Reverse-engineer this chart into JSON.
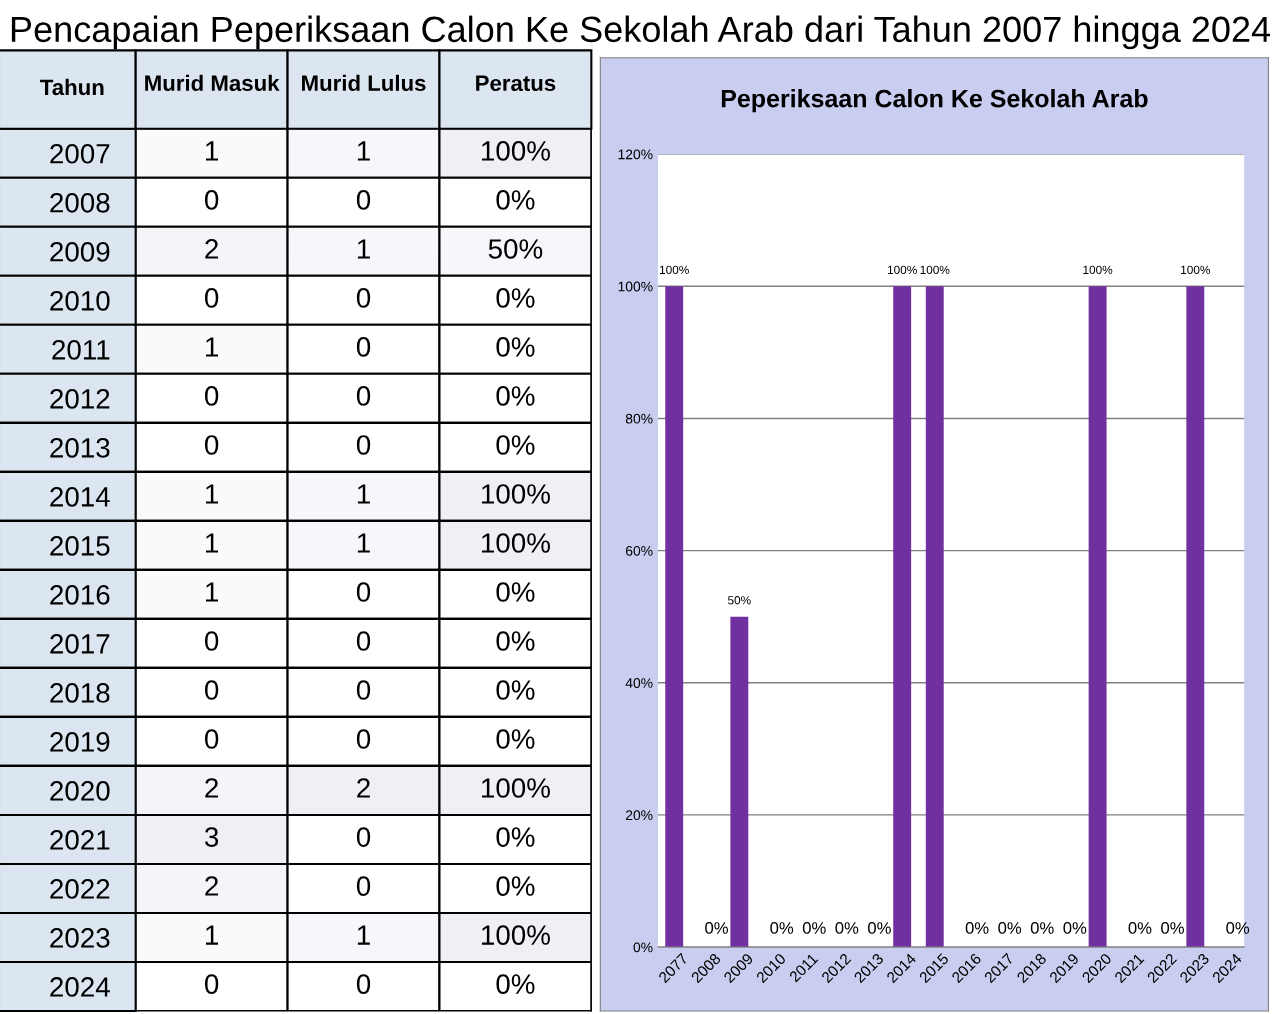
{
  "chart_data": [
    {
      "type": "heatmap",
      "title": "Pencapaian Peperiksaan Calon Ke Sekolah Arab dari Tahun 2007 hingga 2024",
      "ylabel": "Tahun",
      "categories": [
        "Murid Masuk",
        "Murid Lulus",
        "Peratus"
      ],
      "y_categories": [
        "2007",
        "2008",
        "2009",
        "2010",
        "2011",
        "2012",
        "2013",
        "2014",
        "2015",
        "2016",
        "2017",
        "2018",
        "2019",
        "2020",
        "2021",
        "2022",
        "2023",
        "2024"
      ],
      "cells": [
        [
          1,
          1,
          100
        ],
        [
          0,
          0,
          0
        ],
        [
          2,
          1,
          50
        ],
        [
          0,
          0,
          0
        ],
        [
          1,
          0,
          0
        ],
        [
          0,
          0,
          0
        ],
        [
          0,
          0,
          0
        ],
        [
          1,
          1,
          100
        ],
        [
          1,
          1,
          100
        ],
        [
          1,
          0,
          0
        ],
        [
          0,
          0,
          0
        ],
        [
          0,
          0,
          0
        ],
        [
          0,
          0,
          0
        ],
        [
          2,
          2,
          100
        ],
        [
          3,
          0,
          0
        ],
        [
          2,
          0,
          0
        ],
        [
          1,
          1,
          100
        ],
        [
          0,
          0,
          0
        ]
      ],
      "cell_labels": [
        [
          "1",
          "1",
          "100%"
        ],
        [
          "0",
          "0",
          "0%"
        ],
        [
          "2",
          "1",
          "50%"
        ],
        [
          "0",
          "0",
          "0%"
        ],
        [
          "1",
          "0",
          "0%"
        ],
        [
          "0",
          "0",
          "0%"
        ],
        [
          "0",
          "0",
          "0%"
        ],
        [
          "1",
          "1",
          "100%"
        ],
        [
          "1",
          "1",
          "100%"
        ],
        [
          "1",
          "0",
          "0%"
        ],
        [
          "0",
          "0",
          "0%"
        ],
        [
          "0",
          "0",
          "0%"
        ],
        [
          "0",
          "0",
          "0%"
        ],
        [
          "2",
          "2",
          "100%"
        ],
        [
          "3",
          "0",
          "0%"
        ],
        [
          "2",
          "0",
          "0%"
        ],
        [
          "1",
          "1",
          "100%"
        ],
        [
          "0",
          "0",
          "0%"
        ]
      ]
    },
    {
      "type": "bar",
      "title": "Peperiksaan Calon Ke Sekolah Arab",
      "color": "#7030a0",
      "grid": "y",
      "categories": [
        "2077",
        "2008",
        "2009",
        "2010",
        "2011",
        "2012",
        "2013",
        "2014",
        "2015",
        "2016",
        "2017",
        "2018",
        "2019",
        "2020",
        "2021",
        "2022",
        "2023",
        "2024"
      ],
      "values": [
        100,
        0,
        50,
        0,
        0,
        0,
        0,
        100,
        100,
        0,
        0,
        0,
        0,
        100,
        0,
        0,
        100,
        0
      ],
      "value_labels": [
        "100%",
        "0%",
        "50%",
        "0%",
        "0%",
        "0%",
        "0%",
        "100%",
        "100%",
        "0%",
        "0%",
        "0%",
        "0%",
        "100%",
        "0%",
        "0%",
        "100%",
        "0%"
      ],
      "ylim": [
        0,
        120
      ],
      "yticks": [
        {
          "value": 0,
          "label": "0%"
        },
        {
          "value": 20,
          "label": "20%"
        },
        {
          "value": 40,
          "label": "40%"
        },
        {
          "value": 60,
          "label": "60%"
        },
        {
          "value": 80,
          "label": "80%"
        },
        {
          "value": 100,
          "label": "100%"
        },
        {
          "value": 120,
          "label": "120%"
        }
      ]
    }
  ]
}
